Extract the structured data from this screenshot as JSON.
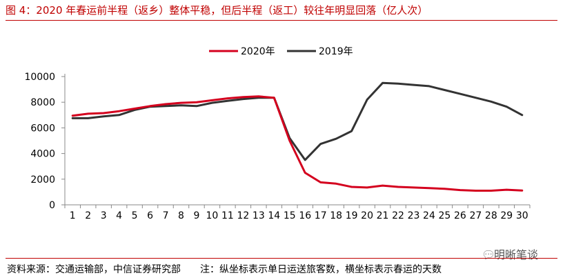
{
  "title": "图 4：2020 年春运前半程（返乡）整体平稳，但后半程（返工）较往年明显回落（亿人次）",
  "source": "资料来源：交通运输部，中信证券研究部",
  "note": "注：纵坐标表示单日运送旅客数，横坐标表示春运的天数",
  "watermark": "明晰笔谈",
  "chart_data": {
    "type": "line",
    "x": [
      1,
      2,
      3,
      4,
      5,
      6,
      7,
      8,
      9,
      10,
      11,
      12,
      13,
      14,
      15,
      16,
      17,
      18,
      19,
      20,
      21,
      22,
      23,
      24,
      25,
      26,
      27,
      28,
      29,
      30
    ],
    "ylim": [
      0,
      10000
    ],
    "yticks": [
      0,
      2000,
      4000,
      6000,
      8000,
      10000
    ],
    "legend_position": "top-center",
    "grid": false,
    "series": [
      {
        "name": "2020年",
        "color": "#d4001e",
        "values": [
          6950,
          7100,
          7150,
          7300,
          7500,
          7700,
          7850,
          7950,
          8000,
          8150,
          8300,
          8400,
          8450,
          8350,
          5000,
          2500,
          1750,
          1650,
          1400,
          1350,
          1500,
          1400,
          1350,
          1300,
          1250,
          1150,
          1100,
          1100,
          1180,
          1120
        ]
      },
      {
        "name": "2019年",
        "color": "#333333",
        "values": [
          6750,
          6750,
          6900,
          7000,
          7400,
          7650,
          7700,
          7750,
          7700,
          7950,
          8100,
          8250,
          8350,
          8350,
          5200,
          3500,
          4750,
          5150,
          5750,
          8200,
          9500,
          9450,
          9350,
          9250,
          8950,
          8650,
          8350,
          8050,
          7650,
          7000
        ]
      }
    ]
  }
}
